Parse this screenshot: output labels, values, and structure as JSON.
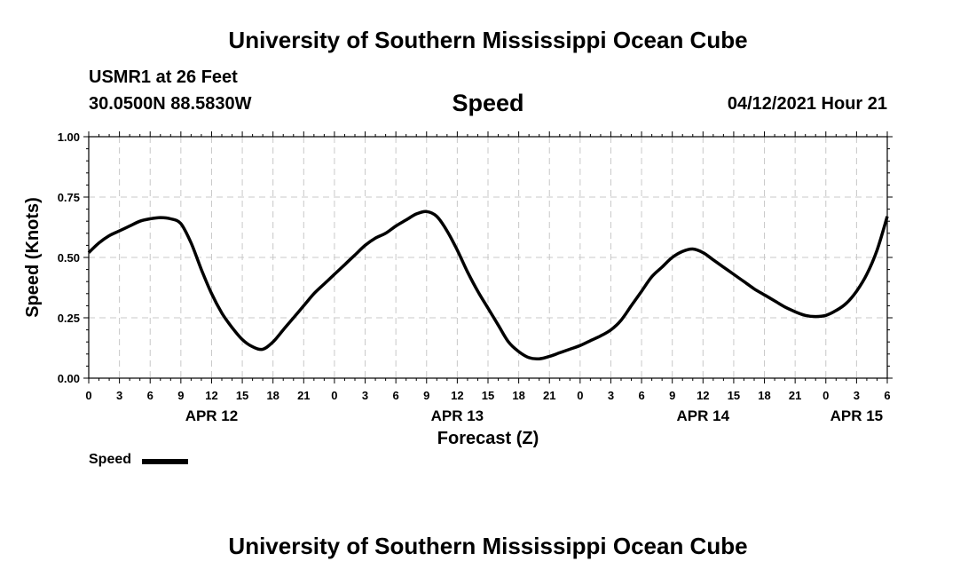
{
  "header": {
    "title": "University of Southern Mississippi Ocean Cube",
    "station": "USMR1 at 26 Feet",
    "coordinates": "30.0500N  88.5830W",
    "run_time": "04/12/2021 Hour 21"
  },
  "footer": {
    "title": "University of Southern Mississippi Ocean Cube"
  },
  "chart_data": {
    "type": "line",
    "title": "Speed",
    "xlabel": "Forecast (Z)",
    "ylabel": "Speed (Knots)",
    "xlim": [
      0,
      78
    ],
    "ylim": [
      0,
      1
    ],
    "grid": true,
    "legend_position": "bottom-left",
    "yticks": [
      "0.00",
      "0.25",
      "0.50",
      "0.75",
      "1.00"
    ],
    "ytick_values": [
      0,
      0.25,
      0.5,
      0.75,
      1.0
    ],
    "xticks": [
      "0",
      "3",
      "6",
      "9",
      "12",
      "15",
      "18",
      "21",
      "0",
      "3",
      "6",
      "9",
      "12",
      "15",
      "18",
      "21",
      "0",
      "3",
      "6",
      "9",
      "12",
      "15",
      "18",
      "21",
      "0",
      "3",
      "6"
    ],
    "day_labels": [
      {
        "label": "APR 12",
        "x": 12
      },
      {
        "label": "APR 13",
        "x": 36
      },
      {
        "label": "APR 14",
        "x": 60
      },
      {
        "label": "APR 15",
        "x": 75
      }
    ],
    "series": [
      {
        "name": "Speed",
        "color": "#000000",
        "x": [
          0,
          1,
          2,
          3,
          4,
          5,
          6,
          7,
          8,
          9,
          10,
          11,
          12,
          13,
          14,
          15,
          16,
          17,
          18,
          19,
          20,
          21,
          22,
          23,
          24,
          25,
          26,
          27,
          28,
          29,
          30,
          31,
          32,
          33,
          34,
          35,
          36,
          37,
          38,
          39,
          40,
          41,
          42,
          43,
          44,
          45,
          46,
          47,
          48,
          49,
          50,
          51,
          52,
          53,
          54,
          55,
          56,
          57,
          58,
          59,
          60,
          61,
          62,
          63,
          64,
          65,
          66,
          67,
          68,
          69,
          70,
          71,
          72,
          73,
          74,
          75,
          76,
          77,
          78
        ],
        "values": [
          0.52,
          0.56,
          0.59,
          0.61,
          0.63,
          0.65,
          0.66,
          0.665,
          0.66,
          0.64,
          0.56,
          0.45,
          0.35,
          0.27,
          0.21,
          0.16,
          0.13,
          0.12,
          0.15,
          0.2,
          0.25,
          0.3,
          0.35,
          0.39,
          0.43,
          0.47,
          0.51,
          0.55,
          0.58,
          0.6,
          0.63,
          0.655,
          0.68,
          0.69,
          0.67,
          0.61,
          0.53,
          0.44,
          0.36,
          0.29,
          0.22,
          0.15,
          0.11,
          0.085,
          0.08,
          0.09,
          0.105,
          0.12,
          0.135,
          0.155,
          0.175,
          0.2,
          0.24,
          0.3,
          0.36,
          0.42,
          0.46,
          0.5,
          0.525,
          0.535,
          0.52,
          0.49,
          0.46,
          0.43,
          0.4,
          0.37,
          0.345,
          0.32,
          0.295,
          0.275,
          0.26,
          0.255,
          0.26,
          0.28,
          0.31,
          0.36,
          0.43,
          0.53,
          0.67
        ]
      }
    ]
  }
}
